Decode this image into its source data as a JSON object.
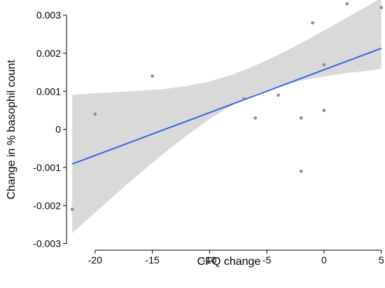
{
  "chart_data": {
    "type": "scatter",
    "title": "",
    "xlabel": "CFQ change",
    "ylabel": "Change in % basophil count",
    "xlim": [
      -22.5,
      5.2
    ],
    "ylim": [
      -0.0031,
      0.0034
    ],
    "x_ticks": [
      -20,
      -15,
      -10,
      -5,
      0,
      5
    ],
    "x_tick_labels": [
      "-20",
      "-15",
      "-10",
      "-5",
      "0",
      "5"
    ],
    "y_ticks": [
      -0.003,
      -0.002,
      -0.001,
      0,
      0.001,
      0.002,
      0.003
    ],
    "y_tick_labels": [
      "-0.003",
      "-0.002",
      "-0.001",
      "0",
      "0.001",
      "0.002",
      "0.003"
    ],
    "grid": false,
    "legend": "none",
    "points": [
      {
        "x": -22,
        "y": -0.0021
      },
      {
        "x": -20,
        "y": 0.0004
      },
      {
        "x": -15,
        "y": 0.0014
      },
      {
        "x": -7,
        "y": 0.0008
      },
      {
        "x": -6,
        "y": 0.0003
      },
      {
        "x": -4,
        "y": 0.0009
      },
      {
        "x": -2,
        "y": 0.0003
      },
      {
        "x": -2,
        "y": -0.0011
      },
      {
        "x": -1,
        "y": 0.0028
      },
      {
        "x": 0,
        "y": 0.0017
      },
      {
        "x": 0,
        "y": 0.0005
      },
      {
        "x": 2,
        "y": 0.0033
      },
      {
        "x": 5,
        "y": 0.0032
      }
    ],
    "fit_line": {
      "x": [
        -22,
        5
      ],
      "y": [
        -0.00091,
        0.00213
      ]
    },
    "confidence_band": {
      "x": [
        -22,
        -20,
        -18,
        -16,
        -14,
        -12,
        -10,
        -8,
        -6,
        -4,
        -2,
        0,
        2,
        4,
        5
      ],
      "lower": [
        -0.00273,
        -0.00219,
        -0.00165,
        -0.00113,
        -0.00063,
        -0.00016,
        0.00027,
        0.00064,
        0.00093,
        0.00114,
        0.00128,
        0.00139,
        0.00148,
        0.00155,
        0.00159
      ],
      "upper": [
        0.00091,
        0.00095,
        0.00098,
        0.00102,
        0.00106,
        0.00114,
        0.00126,
        0.00144,
        0.00168,
        0.00196,
        0.00227,
        0.0026,
        0.00294,
        0.00328,
        0.00346
      ]
    },
    "colors": {
      "point": "#8a8a8a",
      "fit_line": "#3366e6",
      "band": "#d9d9d9",
      "axis": "#000000"
    }
  }
}
